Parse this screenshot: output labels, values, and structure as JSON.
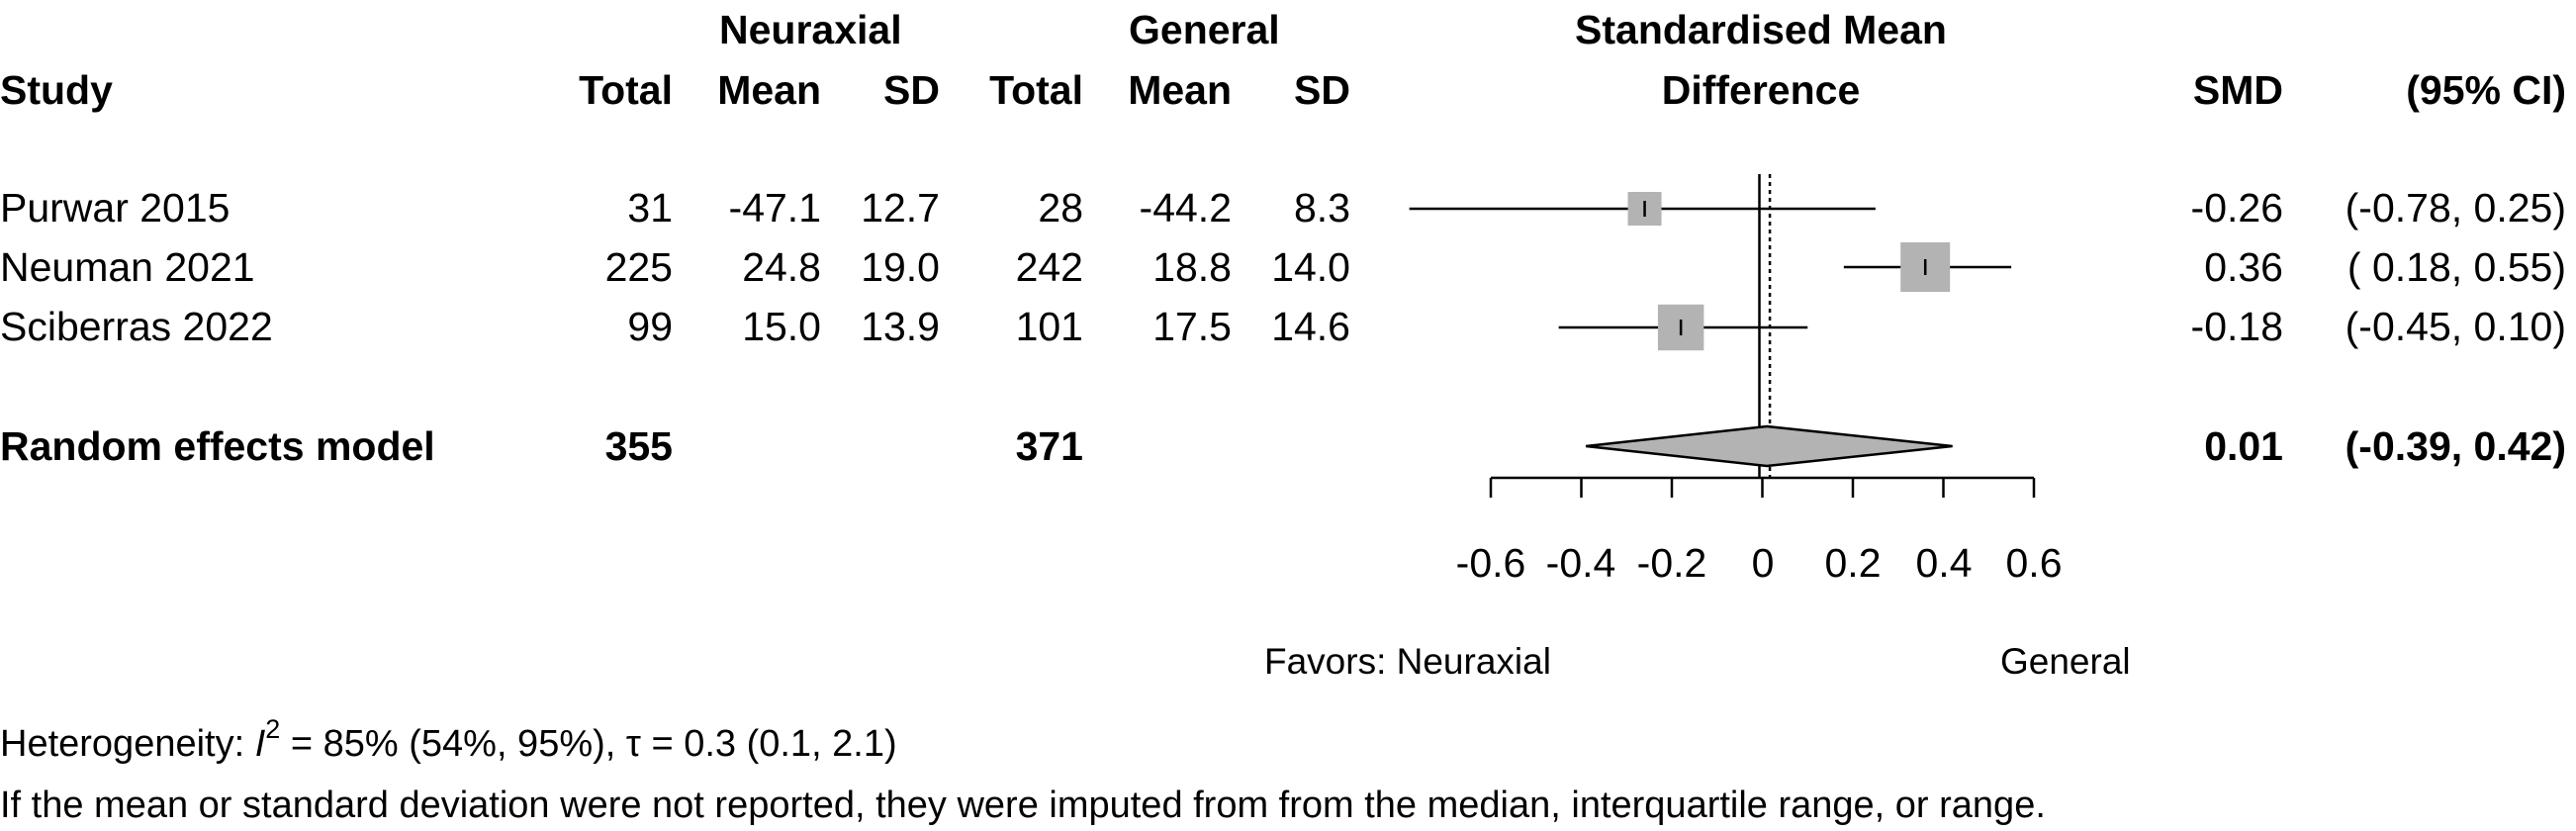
{
  "header": {
    "group1": "Neuraxial",
    "group2": "General",
    "smd_title_line1": "Standardised Mean",
    "smd_title_line2": "Difference",
    "study": "Study",
    "total": "Total",
    "mean": "Mean",
    "sd": "SD",
    "smd": "SMD",
    "ci": "(95% CI)"
  },
  "rows": [
    {
      "study": "Purwar 2015",
      "n1": "31",
      "m1": "-47.1",
      "sd1": "12.7",
      "n2": "28",
      "m2": "-44.2",
      "sd2": "8.3",
      "smd_text": "-0.26",
      "ci_text": "(-0.78, 0.25)"
    },
    {
      "study": "Neuman 2021",
      "n1": "225",
      "m1": "24.8",
      "sd1": "19.0",
      "n2": "242",
      "m2": "18.8",
      "sd2": "14.0",
      "smd_text": "0.36",
      "ci_text": "( 0.18, 0.55)"
    },
    {
      "study": "Sciberras 2022",
      "n1": "99",
      "m1": "15.0",
      "sd1": "13.9",
      "n2": "101",
      "m2": "17.5",
      "sd2": "14.6",
      "smd_text": "-0.18",
      "ci_text": "(-0.45, 0.10)"
    }
  ],
  "pooled": {
    "label": "Random effects model",
    "n1": "355",
    "n2": "371",
    "smd_text": "0.01",
    "ci_text": "(-0.39, 0.42)"
  },
  "axis": {
    "ticks": [
      "-0.6",
      "-0.4",
      "-0.2",
      "0",
      "0.2",
      "0.4",
      "0.6"
    ]
  },
  "favors": {
    "left": "Favors: Neuraxial",
    "right": "General"
  },
  "footnote": {
    "het_prefix": "Heterogeneity: ",
    "het_I": "I",
    "het_sup": "2",
    "het_rest": " = 85% (54%, 95%), τ = 0.3 (0.1, 2.1)",
    "note": "If the mean or standard deviation were not reported, they were imputed from from the median, interquartile range, or range."
  },
  "chart_data": {
    "type": "forest",
    "xlim": [
      -0.6,
      0.6
    ],
    "xticks": [
      -0.6,
      -0.4,
      -0.2,
      0,
      0.2,
      0.4,
      0.6
    ],
    "null_line": 0,
    "studies": [
      {
        "name": "Purwar 2015",
        "smd": -0.26,
        "lower": -0.78,
        "upper": 0.25,
        "weight": 0.28
      },
      {
        "name": "Neuman 2021",
        "smd": 0.36,
        "lower": 0.18,
        "upper": 0.55,
        "weight": 0.37
      },
      {
        "name": "Sciberras 2022",
        "smd": -0.18,
        "lower": -0.45,
        "upper": 0.1,
        "weight": 0.35
      }
    ],
    "pooled": {
      "name": "Random effects model",
      "smd": 0.01,
      "lower": -0.39,
      "upper": 0.42
    },
    "colors": {
      "box": "#b3b3b3",
      "diamond": "#b3b3b3",
      "line": "#000000"
    }
  }
}
